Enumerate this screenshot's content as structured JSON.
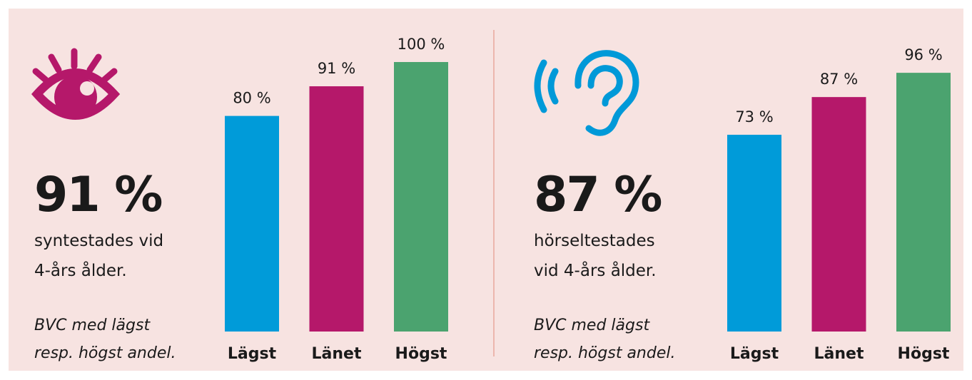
{
  "chart_data": [
    {
      "type": "bar",
      "headline": "91 %",
      "description": [
        "syntestades vid",
        "4-års ålder."
      ],
      "note": [
        "BVC med lägst",
        "resp. högst andel."
      ],
      "categories": [
        "Lägst",
        "Länet",
        "Högst"
      ],
      "values": [
        80,
        91,
        100
      ],
      "value_labels": [
        "80 %",
        "91 %",
        "100 %"
      ],
      "colors": [
        "#009bd9",
        "#b5186a",
        "#4ba36f"
      ],
      "ylim": [
        0,
        100
      ]
    },
    {
      "type": "bar",
      "headline": "87 %",
      "description": [
        "hörseltestades",
        "vid 4-års ålder."
      ],
      "note": [
        "BVC med lägst",
        "resp. högst andel."
      ],
      "categories": [
        "Lägst",
        "Länet",
        "Högst"
      ],
      "values": [
        73,
        87,
        96
      ],
      "value_labels": [
        "73 %",
        "87 %",
        "96 %"
      ],
      "colors": [
        "#009bd9",
        "#b5186a",
        "#4ba36f"
      ],
      "ylim": [
        0,
        100
      ]
    }
  ]
}
